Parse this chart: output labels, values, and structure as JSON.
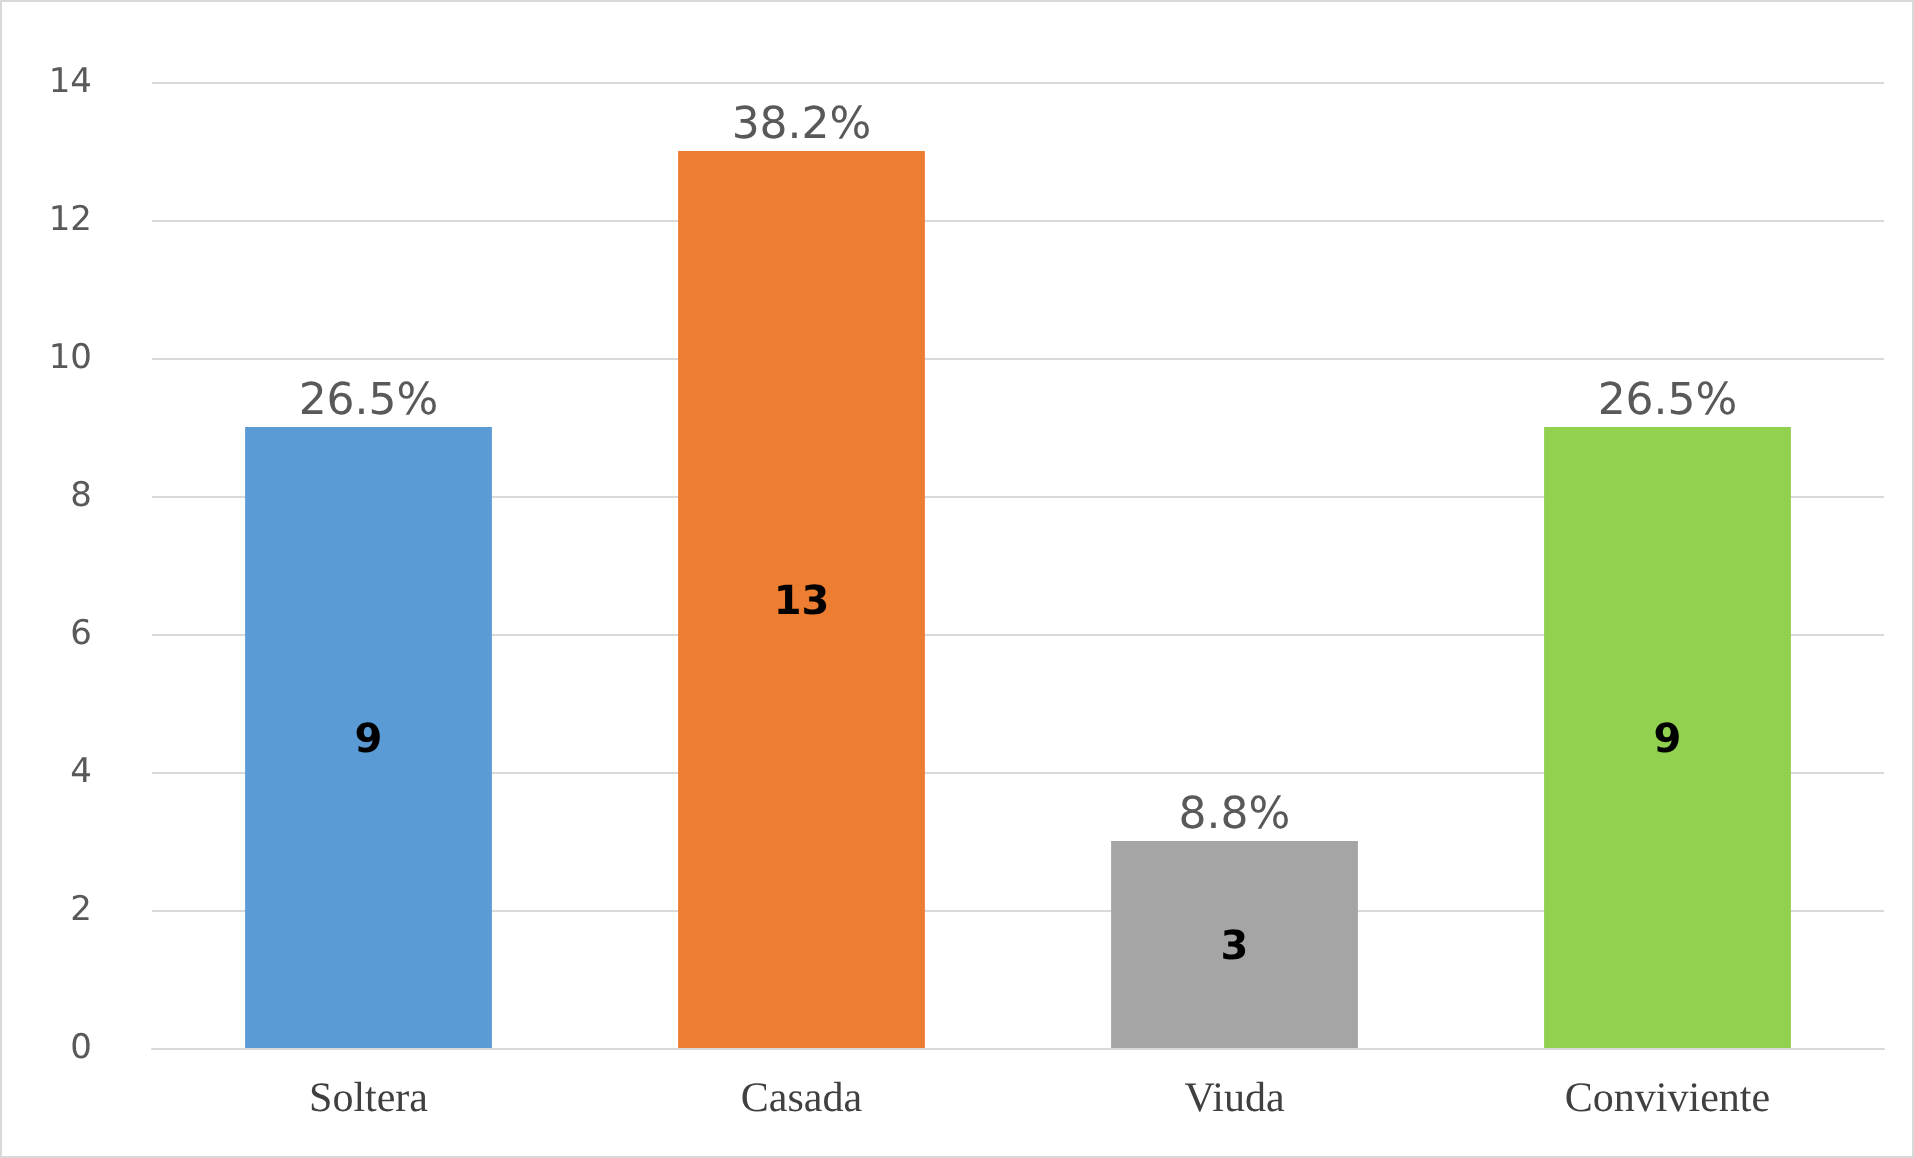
{
  "chart_data": {
    "type": "bar",
    "categories": [
      "Soltera",
      "Casada",
      "Viuda",
      "Conviviente"
    ],
    "values": [
      9,
      13,
      3,
      9
    ],
    "colors": [
      "#5b9bd5",
      "#ed7d31",
      "#a5a5a5",
      "#92d050"
    ],
    "ylim": [
      0,
      14
    ],
    "yticks": [
      0,
      2,
      4,
      6,
      8,
      10,
      12,
      14
    ],
    "grid": "y",
    "data_labels": true,
    "annotations": [
      {
        "text": "26.5%",
        "x": "Soltera",
        "y": 9
      },
      {
        "text": "38.2%",
        "x": "Casada",
        "y": 13
      },
      {
        "text": "8.8%",
        "x": "Viuda",
        "y": 3
      },
      {
        "text": "26.5%",
        "x": "Conviviente",
        "y": 9
      }
    ]
  }
}
